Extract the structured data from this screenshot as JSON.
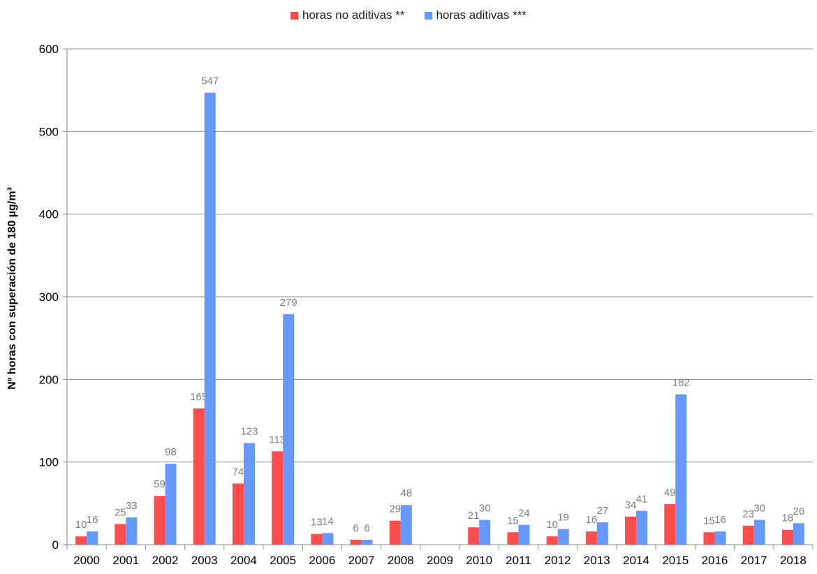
{
  "chart_data": {
    "type": "bar",
    "title": "",
    "xlabel": "",
    "ylabel": "Nº  horas con superación de 180 µg/m³",
    "ylim": [
      0,
      600
    ],
    "yticks": [
      "0",
      "100",
      "200",
      "300",
      "400",
      "500",
      "600"
    ],
    "grid": true,
    "legend_position": "top-center",
    "categories": [
      "2000",
      "2001",
      "2002",
      "2003",
      "2004",
      "2005",
      "2006",
      "2007",
      "2008",
      "2009",
      "2010",
      "2011",
      "2012",
      "2013",
      "2014",
      "2015",
      "2016",
      "2017",
      "2018"
    ],
    "series": [
      {
        "name": "horas no aditivas **",
        "color": "#ff4d4d",
        "values": [
          10,
          25,
          59,
          165,
          74,
          113,
          13,
          6,
          29,
          null,
          21,
          15,
          10,
          16,
          34,
          49,
          15,
          23,
          18
        ]
      },
      {
        "name": "horas aditivas ***",
        "color": "#6699ff",
        "values": [
          16,
          33,
          98,
          547,
          123,
          279,
          14,
          6,
          48,
          null,
          30,
          24,
          19,
          27,
          41,
          182,
          16,
          30,
          26
        ]
      }
    ],
    "label_color": "#7f7f7f"
  }
}
